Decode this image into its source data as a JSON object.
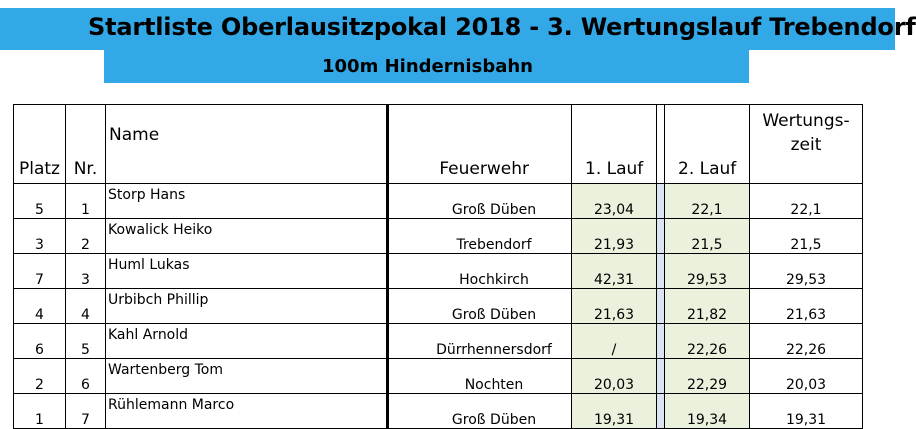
{
  "title": "Startliste Oberlausitzpokal 2018 - 3. Wertungslauf Trebendorf",
  "subtitle": "100m Hindernisbahn",
  "colors": {
    "banner": "#32a8e6",
    "lauf_cell": "#eaf1dd",
    "gap_cell": "#dbe5f1"
  },
  "headers": {
    "platz": "Platz",
    "nr": "Nr.",
    "name": "Name",
    "feuerwehr": "Feuerwehr",
    "lauf1": "1. Lauf",
    "lauf2": "2. Lauf",
    "wertungszeit": "Wertungs- zeit"
  },
  "rows": [
    {
      "platz": "5",
      "nr": "1",
      "name": "Storp Hans",
      "feuerwehr": "Groß Düben",
      "lauf1": "23,04",
      "lauf2": "22,1",
      "wertungszeit": "22,1"
    },
    {
      "platz": "3",
      "nr": "2",
      "name": "Kowalick Heiko",
      "feuerwehr": "Trebendorf",
      "lauf1": "21,93",
      "lauf2": "21,5",
      "wertungszeit": "21,5"
    },
    {
      "platz": "7",
      "nr": "3",
      "name": "Huml Lukas",
      "feuerwehr": "Hochkirch",
      "lauf1": "42,31",
      "lauf2": "29,53",
      "wertungszeit": "29,53"
    },
    {
      "platz": "4",
      "nr": "4",
      "name": "Urbibch Phillip",
      "feuerwehr": "Groß Düben",
      "lauf1": "21,63",
      "lauf2": "21,82",
      "wertungszeit": "21,63"
    },
    {
      "platz": "6",
      "nr": "5",
      "name": "Kahl Arnold",
      "feuerwehr": "Dürrhennersdorf",
      "lauf1": "/",
      "lauf2": "22,26",
      "wertungszeit": "22,26"
    },
    {
      "platz": "2",
      "nr": "6",
      "name": "Wartenberg Tom",
      "feuerwehr": "Nochten",
      "lauf1": "20,03",
      "lauf2": "22,29",
      "wertungszeit": "20,03"
    },
    {
      "platz": "1",
      "nr": "7",
      "name": "Rühlemann Marco",
      "feuerwehr": "Groß Düben",
      "lauf1": "19,31",
      "lauf2": "19,34",
      "wertungszeit": "19,31"
    }
  ]
}
